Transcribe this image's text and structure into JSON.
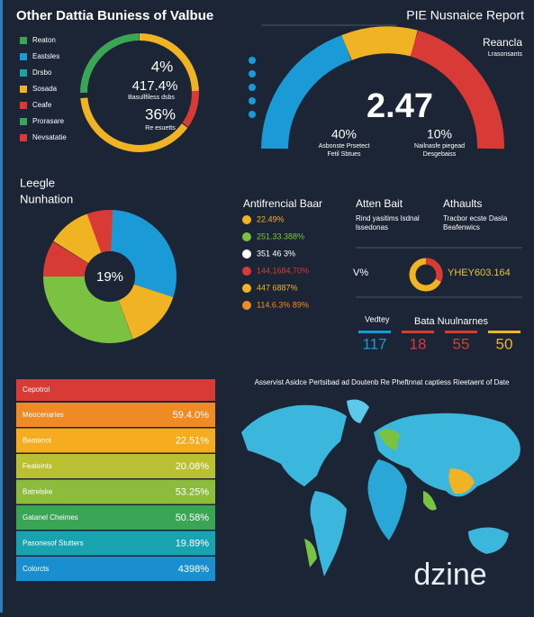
{
  "top_left": {
    "title": "Other Dattia Buniess of Valbue",
    "legend": [
      {
        "label": "Reaton",
        "color": "#3aa655"
      },
      {
        "label": "Eastsles",
        "color": "#1a9bd7"
      },
      {
        "label": "Drsbo",
        "color": "#17a3a8"
      },
      {
        "label": "Sosada",
        "color": "#f0b323"
      },
      {
        "label": "Ceafe",
        "color": "#d83a36"
      },
      {
        "label": "Prorasare",
        "color": "#3aa655"
      },
      {
        "label": "Nevsatatie",
        "color": "#d83a36"
      }
    ],
    "donut_texts": [
      "4%",
      "417.4%",
      "Basullfiless dsbs",
      "36%",
      "Re esuetts"
    ]
  },
  "top_right": {
    "title": "PIE Nusnaice Report",
    "legend_title": "Reancla",
    "legend_sub": "Lrasonsants",
    "big_value": "2.47",
    "left_pct": "40%",
    "left_caption": [
      "Asbonste Prsetect",
      "Fetil Sbtues"
    ],
    "right_pct": "10%",
    "right_caption": [
      "Nailnasfe piegead",
      "Desgebaiss"
    ]
  },
  "pie_panel": {
    "title": "Leegle",
    "subtitle": "Nunhation",
    "center": "19%"
  },
  "middle": {
    "list_title": "Antifrencial Baar",
    "list": [
      {
        "label": "22.49%",
        "color": "#f0b323"
      },
      {
        "label": "251.33.388%",
        "color": "#7cc242"
      },
      {
        "label": "351 46 3%",
        "color": "#ffffff"
      },
      {
        "label": "144,1684,70%",
        "color": "#d83a36"
      },
      {
        "label": "447 6887%",
        "color": "#f0b323"
      },
      {
        "label": "114.6.3% 89%",
        "color": "#f08a24"
      }
    ],
    "col2_title": "Atten Bait",
    "col2_text": [
      "Rind yasitims lsdnal",
      "lssedonas"
    ],
    "col3_title": "Athaults",
    "col3_text": [
      "Tracbor ecste Dasla",
      "Beafenwics"
    ],
    "ring_left": "V%",
    "ring_right": "YHEY603.164",
    "stats_title_left": "Vedtey",
    "stats_title_right": "Bata Nuulnarnes",
    "stats": [
      {
        "label": "117",
        "color": "#1a9bd7"
      },
      {
        "label": "18",
        "color": "#d83a36"
      },
      {
        "label": "55",
        "color": "#d83a36"
      },
      {
        "label": "50",
        "color": "#f0b323"
      }
    ]
  },
  "bar_list": {
    "header": "Cepotrol",
    "rows": [
      {
        "label": "Meocenaries",
        "value": "59.4.0%",
        "color": "#f08a24"
      },
      {
        "label": "Beatenot",
        "value": "22.51%",
        "color": "#f5ad1f"
      },
      {
        "label": "Feateints",
        "value": "20.08%",
        "color": "#b9c032"
      },
      {
        "label": "Batrelske",
        "value": "53.25%",
        "color": "#8dbb3b"
      },
      {
        "label": "Gatanel Cheimes",
        "value": "50.58%",
        "color": "#3aa655"
      },
      {
        "label": "Pasonesof Stutters",
        "value": "19.89%",
        "color": "#18a3b0"
      },
      {
        "label": "Colorcts",
        "value": "4398%",
        "color": "#1a8fd0"
      }
    ]
  },
  "map_panel": {
    "title": "Asservist Asidce Pertsibad ad Doutenb Re Pheftnnat captiess Rieetaent of Date",
    "watermark": "dzine"
  }
}
